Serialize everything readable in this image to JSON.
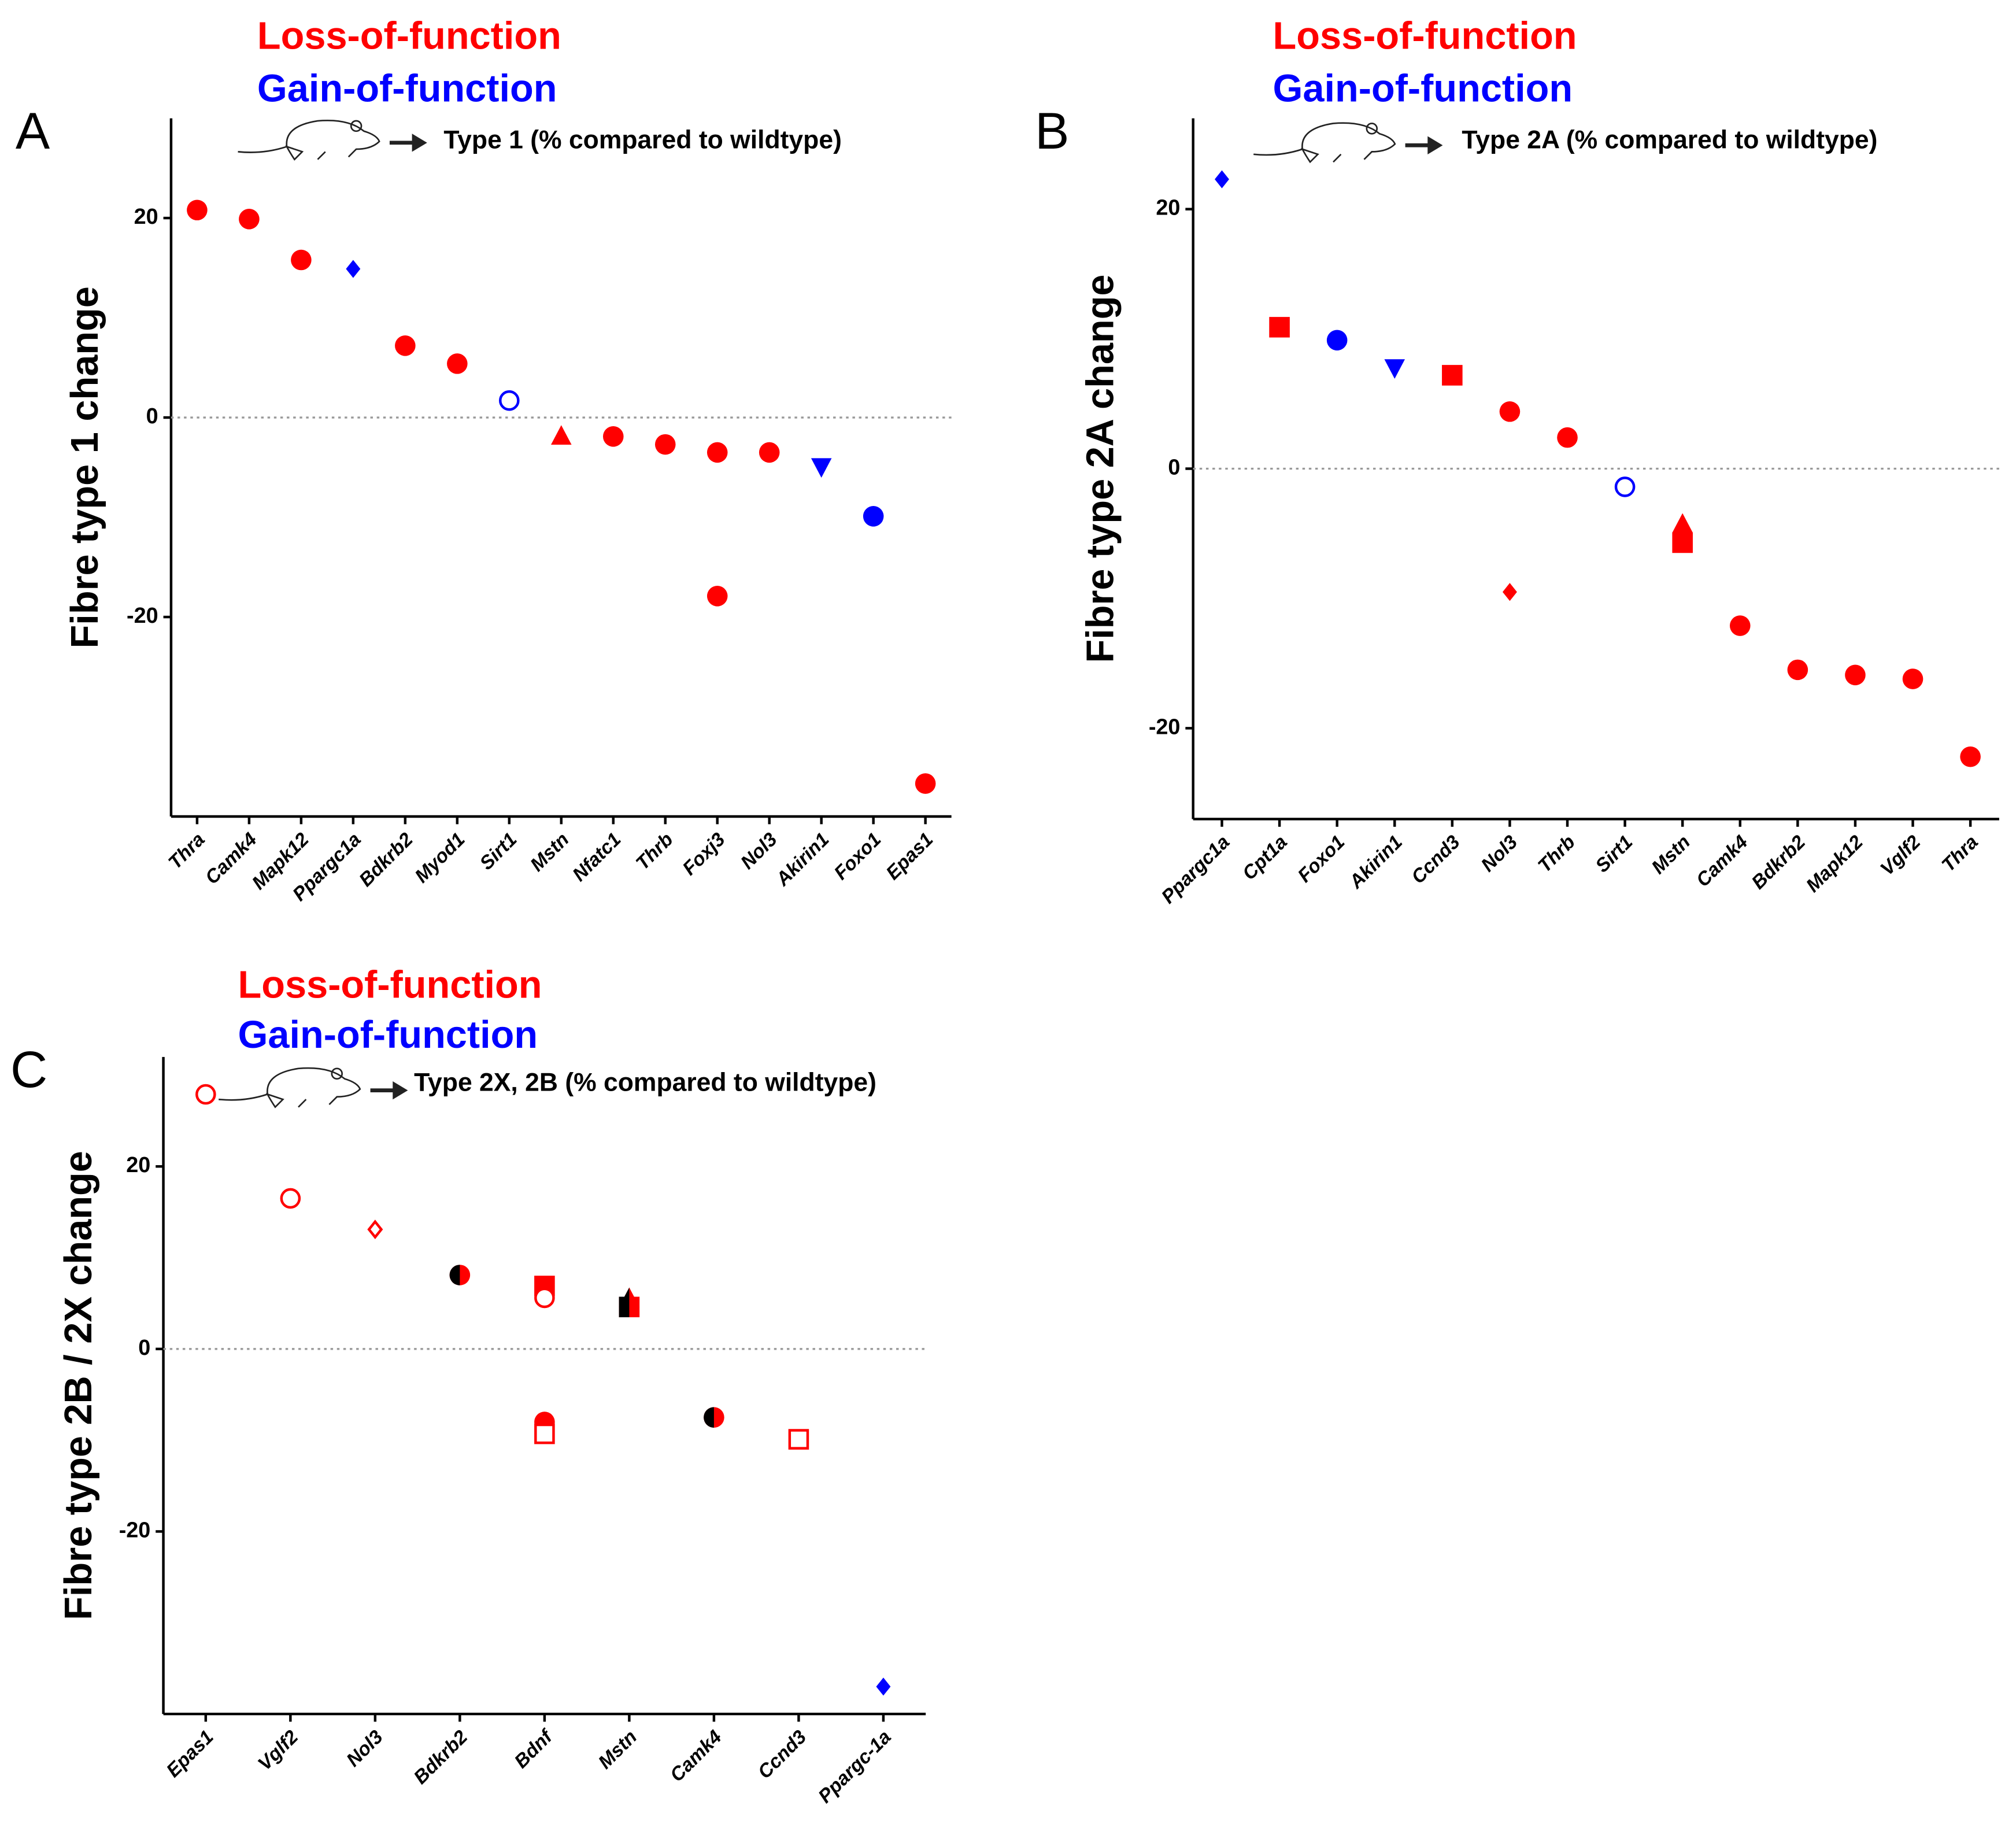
{
  "chart_data": [
    {
      "type": "scatter",
      "panel": "A",
      "legend": [
        {
          "name": "Loss-of-function",
          "color": "#ff0000"
        },
        {
          "name": "Gain-of-function",
          "color": "#0000ff"
        }
      ],
      "annotation": "Type 1 (% compared to wildtype)",
      "y_label": "Fibre type 1 change",
      "categories": [
        "Thra",
        "Camk4",
        "Mapk12",
        "Ppargc1a",
        "Bdkrb2",
        "Myod1",
        "Sirt1",
        "Mstn",
        "Nfatc1",
        "Thrb",
        "Foxj3",
        "Nol3",
        "Akirin1",
        "Foxo1",
        "Epas1"
      ],
      "ylim": [
        -40,
        30
      ],
      "yticks": [
        -20,
        0,
        20
      ],
      "points": [
        {
          "category": 0,
          "value": 20.8,
          "marker": "circle",
          "color": "#ff0000",
          "fill": "solid"
        },
        {
          "category": 1,
          "value": 19.9,
          "marker": "circle",
          "color": "#ff0000",
          "fill": "solid"
        },
        {
          "category": 2,
          "value": 15.8,
          "marker": "circle",
          "color": "#ff0000",
          "fill": "solid"
        },
        {
          "category": 3,
          "value": 14.9,
          "marker": "diamond",
          "color": "#0000ff",
          "fill": "solid"
        },
        {
          "category": 4,
          "value": 7.2,
          "marker": "circle",
          "color": "#ff0000",
          "fill": "solid"
        },
        {
          "category": 5,
          "value": 5.4,
          "marker": "circle",
          "color": "#ff0000",
          "fill": "solid"
        },
        {
          "category": 6,
          "value": 1.7,
          "marker": "circle",
          "color": "#0000ff",
          "fill": "open"
        },
        {
          "category": 7,
          "value": -1.9,
          "marker": "triangle",
          "color": "#ff0000",
          "fill": "solid"
        },
        {
          "category": 8,
          "value": -1.9,
          "marker": "circle",
          "color": "#ff0000",
          "fill": "solid"
        },
        {
          "category": 9,
          "value": -2.7,
          "marker": "circle",
          "color": "#ff0000",
          "fill": "solid"
        },
        {
          "category": 10,
          "value": -3.5,
          "marker": "circle",
          "color": "#ff0000",
          "fill": "solid"
        },
        {
          "category": 10,
          "value": -17.9,
          "marker": "circle",
          "color": "#ff0000",
          "fill": "solid"
        },
        {
          "category": 11,
          "value": -3.5,
          "marker": "circle",
          "color": "#ff0000",
          "fill": "solid"
        },
        {
          "category": 12,
          "value": -4.9,
          "marker": "triangle-down",
          "color": "#0000ff",
          "fill": "solid"
        },
        {
          "category": 13,
          "value": -9.9,
          "marker": "circle",
          "color": "#0000ff",
          "fill": "solid"
        },
        {
          "category": 14,
          "value": -36.7,
          "marker": "circle",
          "color": "#ff0000",
          "fill": "solid"
        }
      ]
    },
    {
      "type": "scatter",
      "panel": "B",
      "legend": [
        {
          "name": "Loss-of-function",
          "color": "#ff0000"
        },
        {
          "name": "Gain-of-function",
          "color": "#0000ff"
        }
      ],
      "annotation": "Type 2A (% compared to wildtype)",
      "y_label": "Fibre type 2A change",
      "categories": [
        "Ppargc1a",
        "Cpt1a",
        "Foxo1",
        "Akirin1",
        "Ccnd3",
        "Nol3",
        "Thrb",
        "Sirt1",
        "Mstn",
        "Camk4",
        "Bdkrb2",
        "Mapk12",
        "Vglf2",
        "Thra"
      ],
      "ylim": [
        -27,
        27
      ],
      "yticks": [
        -20,
        0,
        20
      ],
      "points": [
        {
          "category": 0,
          "value": 22.3,
          "marker": "diamond",
          "color": "#0000ff",
          "fill": "solid"
        },
        {
          "category": 1,
          "value": 10.9,
          "marker": "square",
          "color": "#ff0000",
          "fill": "solid"
        },
        {
          "category": 2,
          "value": 9.9,
          "marker": "circle",
          "color": "#0000ff",
          "fill": "solid"
        },
        {
          "category": 3,
          "value": 7.8,
          "marker": "triangle-down",
          "color": "#0000ff",
          "fill": "solid"
        },
        {
          "category": 4,
          "value": 7.2,
          "marker": "square",
          "color": "#ff0000",
          "fill": "solid"
        },
        {
          "category": 5,
          "value": 4.4,
          "marker": "circle",
          "color": "#ff0000",
          "fill": "solid"
        },
        {
          "category": 5,
          "value": -9.5,
          "marker": "diamond",
          "color": "#ff0000",
          "fill": "solid"
        },
        {
          "category": 6,
          "value": 2.4,
          "marker": "circle",
          "color": "#ff0000",
          "fill": "solid"
        },
        {
          "category": 7,
          "value": -1.4,
          "marker": "circle",
          "color": "#0000ff",
          "fill": "open"
        },
        {
          "category": 8,
          "value": -4.3,
          "marker": "triangle",
          "color": "#ff0000",
          "fill": "solid"
        },
        {
          "category": 8,
          "value": -5.7,
          "marker": "square",
          "color": "#ff0000",
          "fill": "solid"
        },
        {
          "category": 9,
          "value": -12.1,
          "marker": "circle",
          "color": "#ff0000",
          "fill": "solid"
        },
        {
          "category": 10,
          "value": -15.5,
          "marker": "circle",
          "color": "#ff0000",
          "fill": "solid"
        },
        {
          "category": 11,
          "value": -15.9,
          "marker": "circle",
          "color": "#ff0000",
          "fill": "solid"
        },
        {
          "category": 12,
          "value": -16.2,
          "marker": "circle",
          "color": "#ff0000",
          "fill": "solid"
        },
        {
          "category": 13,
          "value": -22.2,
          "marker": "circle",
          "color": "#ff0000",
          "fill": "solid"
        }
      ]
    },
    {
      "type": "scatter",
      "panel": "C",
      "legend": [
        {
          "name": "Loss-of-function",
          "color": "#ff0000"
        },
        {
          "name": "Gain-of-function",
          "color": "#0000ff"
        }
      ],
      "annotation": "Type 2X, 2B (% compared to wildtype)",
      "y_label": "Fibre type 2B / 2X change",
      "categories": [
        "Epas1",
        "Vglf2",
        "Nol3",
        "Bdkrb2",
        "Bdnf",
        "Mstn",
        "Camk4",
        "Ccnd3",
        "Ppargc-1a"
      ],
      "ylim": [
        -40,
        32
      ],
      "yticks": [
        -20,
        0,
        20
      ],
      "points": [
        {
          "category": 0,
          "value": 27.9,
          "marker": "circle",
          "color": "#ff0000",
          "fill": "open"
        },
        {
          "category": 1,
          "value": 16.5,
          "marker": "circle",
          "color": "#ff0000",
          "fill": "open"
        },
        {
          "category": 2,
          "value": 13.1,
          "marker": "diamond",
          "color": "#ff0000",
          "fill": "open"
        },
        {
          "category": 3,
          "value": 8.1,
          "marker": "circle",
          "color": "#ff0000",
          "fill": "half"
        },
        {
          "category": 4,
          "value": 6.9,
          "marker": "square",
          "color": "#ff0000",
          "fill": "solid"
        },
        {
          "category": 4,
          "value": 5.6,
          "marker": "circle",
          "color": "#ff0000",
          "fill": "open"
        },
        {
          "category": 4,
          "value": -8.0,
          "marker": "circle",
          "color": "#ff0000",
          "fill": "solid"
        },
        {
          "category": 4,
          "value": -9.3,
          "marker": "square",
          "color": "#ff0000",
          "fill": "open"
        },
        {
          "category": 5,
          "value": 5.5,
          "marker": "triangle",
          "color": "#ff0000",
          "fill": "half"
        },
        {
          "category": 5,
          "value": 4.6,
          "marker": "square",
          "color": "#ff0000",
          "fill": "half"
        },
        {
          "category": 6,
          "value": -7.5,
          "marker": "circle",
          "color": "#ff0000",
          "fill": "half"
        },
        {
          "category": 7,
          "value": -9.9,
          "marker": "square",
          "color": "#ff0000",
          "fill": "open"
        },
        {
          "category": 8,
          "value": -37.0,
          "marker": "diamond",
          "color": "#0000ff",
          "fill": "solid"
        }
      ]
    }
  ]
}
